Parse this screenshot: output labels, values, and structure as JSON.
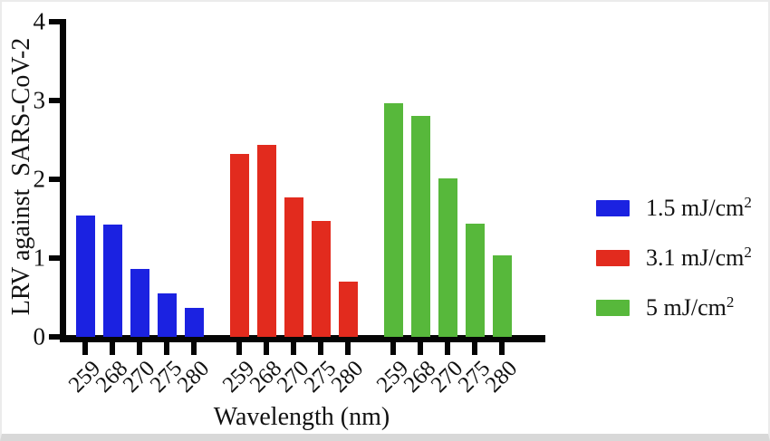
{
  "chart_data": {
    "type": "bar",
    "title": "",
    "xlabel": "Wavelength (nm)",
    "ylabel": "LRV against  SARS-CoV-2",
    "ylim": [
      0,
      4
    ],
    "yticks": [
      "0",
      "1",
      "2",
      "3",
      "4"
    ],
    "categories": [
      "259",
      "268",
      "270",
      "275",
      "280"
    ],
    "series": [
      {
        "name": "1.5 mJ/cm2",
        "color": "#1b22e1",
        "values": [
          1.54,
          1.43,
          0.86,
          0.55,
          0.37
        ]
      },
      {
        "name": "3.1 mJ/cm2",
        "color": "#e22b1e",
        "values": [
          2.32,
          2.44,
          1.77,
          1.47,
          0.7
        ]
      },
      {
        "name": "5 mJ/cm2",
        "color": "#57b83b",
        "values": [
          2.97,
          2.8,
          2.01,
          1.44,
          1.03
        ]
      }
    ],
    "grid": false,
    "legend_position": "right"
  },
  "legend": {
    "items": [
      {
        "base": "1.5 mJ/cm",
        "sup": "2"
      },
      {
        "base": "3.1 mJ/cm",
        "sup": "2"
      },
      {
        "base": "5 mJ/cm",
        "sup": "2"
      }
    ]
  },
  "colors": {
    "axis": "#050505",
    "text": "#111111",
    "bottom_border": "#d8d8d8"
  }
}
